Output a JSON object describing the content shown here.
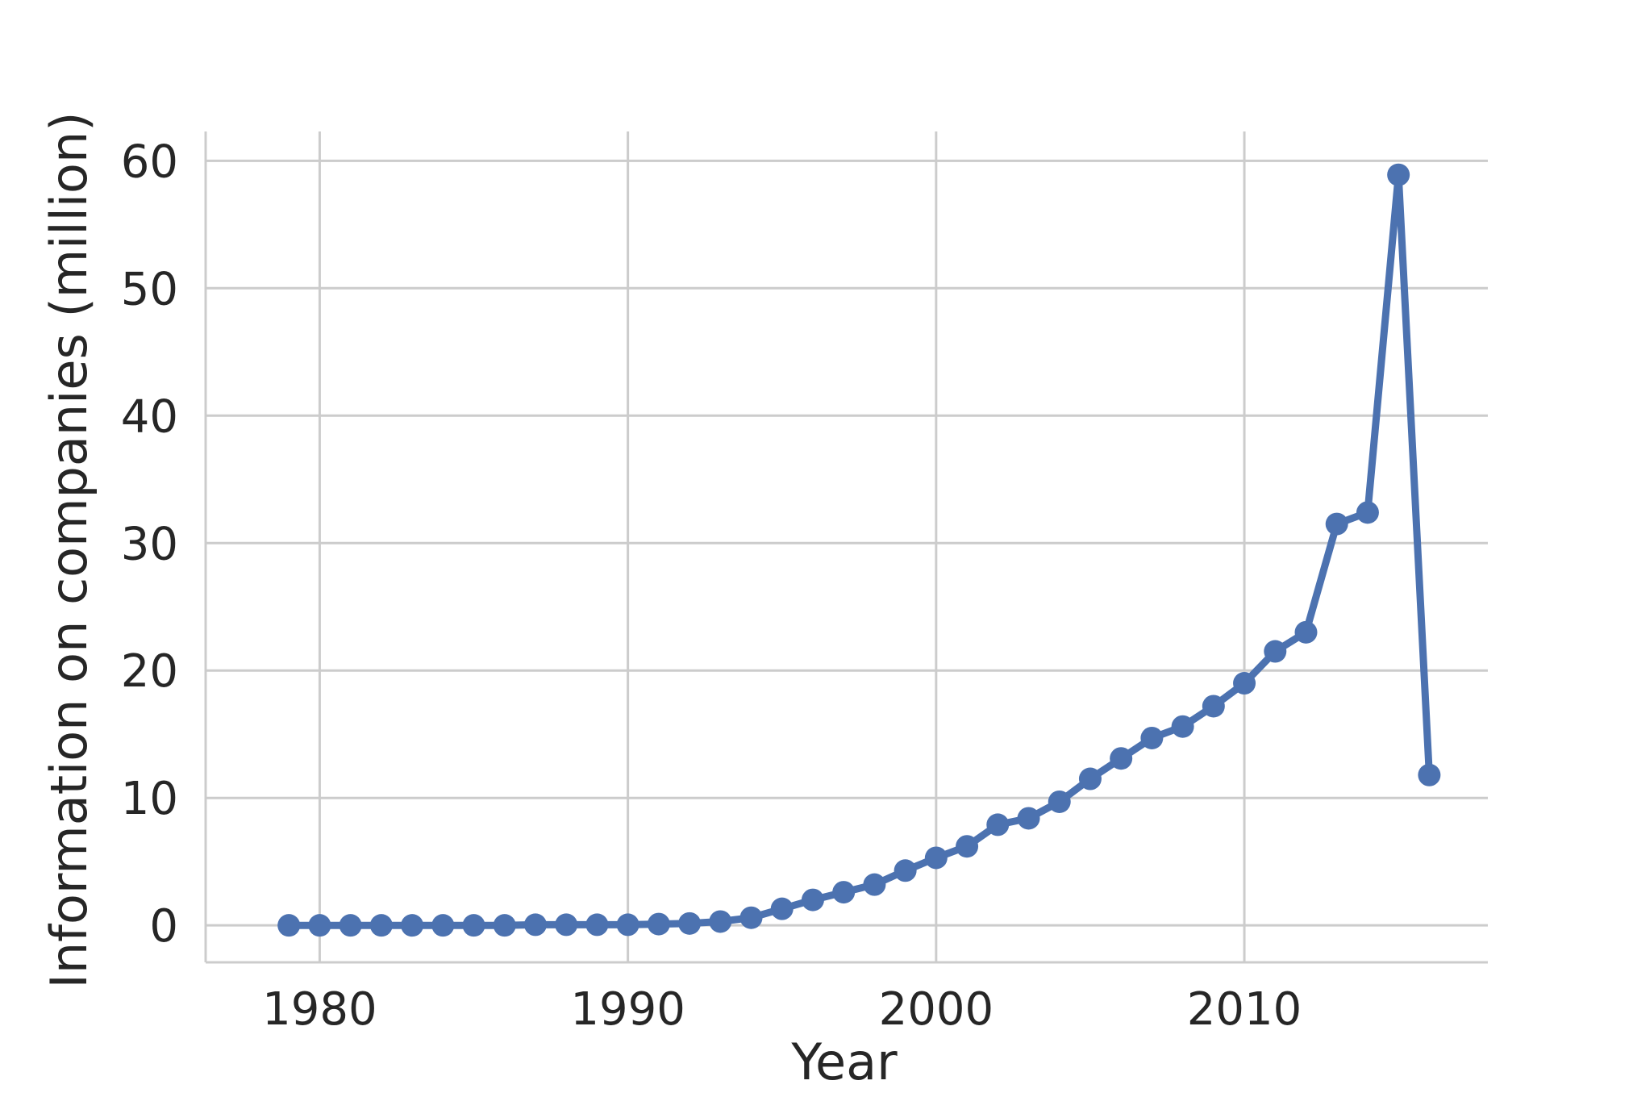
{
  "chart_data": {
    "type": "line",
    "xlabel": "Year",
    "ylabel": "Information on companies (million)",
    "xlim": [
      1976.3,
      2017.9
    ],
    "ylim": [
      -2.9,
      62.3
    ],
    "xticks": [
      1980,
      1990,
      2000,
      2010
    ],
    "yticks": [
      0,
      10,
      20,
      30,
      40,
      50,
      60
    ],
    "grid": true,
    "series": [
      {
        "color": "#4c72b0",
        "marker": "circle",
        "x": [
          1979,
          1980,
          1981,
          1982,
          1983,
          1984,
          1985,
          1986,
          1987,
          1988,
          1989,
          1990,
          1991,
          1992,
          1993,
          1994,
          1995,
          1996,
          1997,
          1998,
          1999,
          2000,
          2001,
          2002,
          2003,
          2004,
          2005,
          2006,
          2007,
          2008,
          2009,
          2010,
          2011,
          2012,
          2013,
          2014,
          2015,
          2016
        ],
        "y": [
          0,
          0,
          0,
          0,
          0,
          0,
          0,
          0,
          0.05,
          0.05,
          0.05,
          0.05,
          0.1,
          0.15,
          0.3,
          0.6,
          1.3,
          2.0,
          2.6,
          3.2,
          4.3,
          5.3,
          6.2,
          7.9,
          8.4,
          9.7,
          11.5,
          13.1,
          14.7,
          15.6,
          17.2,
          19.0,
          21.5,
          23.0,
          31.5,
          32.4,
          58.9,
          11.8
        ]
      }
    ]
  }
}
